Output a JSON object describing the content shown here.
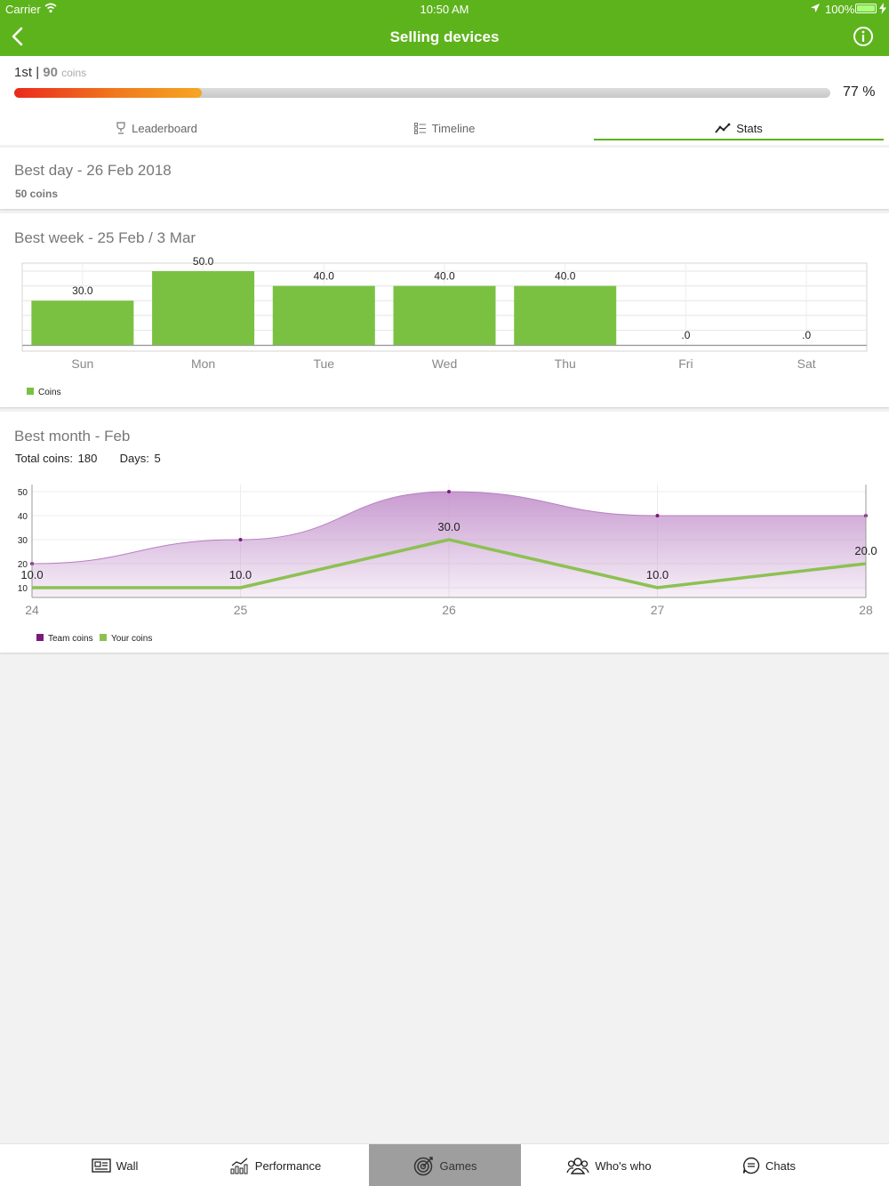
{
  "status_bar": {
    "carrier": "Carrier",
    "time": "10:50 AM",
    "battery": "100%"
  },
  "nav": {
    "title": "Selling devices",
    "back_icon": "chevron-left-icon",
    "info_icon": "info-icon"
  },
  "header": {
    "rank": "1st",
    "separator": "|",
    "coins_value": "90",
    "coins_unit": "coins",
    "progress_percent": 23,
    "progress_label": "77 %"
  },
  "tabs": [
    {
      "label": "Leaderboard",
      "icon": "trophy-icon",
      "active": false
    },
    {
      "label": "Timeline",
      "icon": "list-icon",
      "active": false
    },
    {
      "label": "Stats",
      "icon": "line-chart-icon",
      "active": true
    }
  ],
  "best_day": {
    "title": "Best day - 26 Feb 2018",
    "subtitle": "50 coins"
  },
  "best_week": {
    "title": "Best week - 25 Feb / 3 Mar"
  },
  "best_month": {
    "title": "Best month - Feb",
    "total_label": "Total coins:",
    "total_value": "180",
    "days_label": "Days:",
    "days_value": "5"
  },
  "colors": {
    "brand_green": "#5db31c",
    "bar_green": "#7ac142",
    "team_purple": "#7b1a7b",
    "area_purple": "#c89bd0"
  },
  "chart_data": [
    {
      "type": "bar",
      "categories": [
        "Sun",
        "Mon",
        "Tue",
        "Wed",
        "Thu",
        "Fri",
        "Sat"
      ],
      "values": [
        30,
        50,
        40,
        40,
        40,
        0,
        0
      ],
      "value_labels": [
        "30.0",
        "50.0",
        "40.0",
        "40.0",
        "40.0",
        ".0",
        ".0"
      ],
      "series": [
        {
          "name": "Coins",
          "values": [
            30,
            50,
            40,
            40,
            40,
            0,
            0
          ]
        }
      ],
      "ylim": [
        0,
        50
      ],
      "grid": true,
      "legend": "bottom-left"
    },
    {
      "type": "line",
      "x": [
        "24",
        "25",
        "26",
        "27",
        "28"
      ],
      "series": [
        {
          "name": "Team coins",
          "values": [
            20,
            30,
            50,
            40,
            40
          ],
          "style": "area"
        },
        {
          "name": "Your coins",
          "values": [
            10,
            10,
            30,
            10,
            20
          ],
          "value_labels": [
            "10.0",
            "10.0",
            "30.0",
            "10.0",
            "20.0"
          ]
        }
      ],
      "y_ticks": [
        "10",
        "20",
        "30",
        "40",
        "50"
      ],
      "ylim": [
        10,
        50
      ],
      "grid": true,
      "legend": "bottom-left"
    }
  ],
  "tabbar": [
    {
      "label": "Wall",
      "icon": "newspaper-icon",
      "active": false
    },
    {
      "label": "Performance",
      "icon": "performance-icon",
      "active": false
    },
    {
      "label": "Games",
      "icon": "target-icon",
      "active": true
    },
    {
      "label": "Who's who",
      "icon": "people-icon",
      "active": false
    },
    {
      "label": "Chats",
      "icon": "chat-icon",
      "active": false
    }
  ]
}
